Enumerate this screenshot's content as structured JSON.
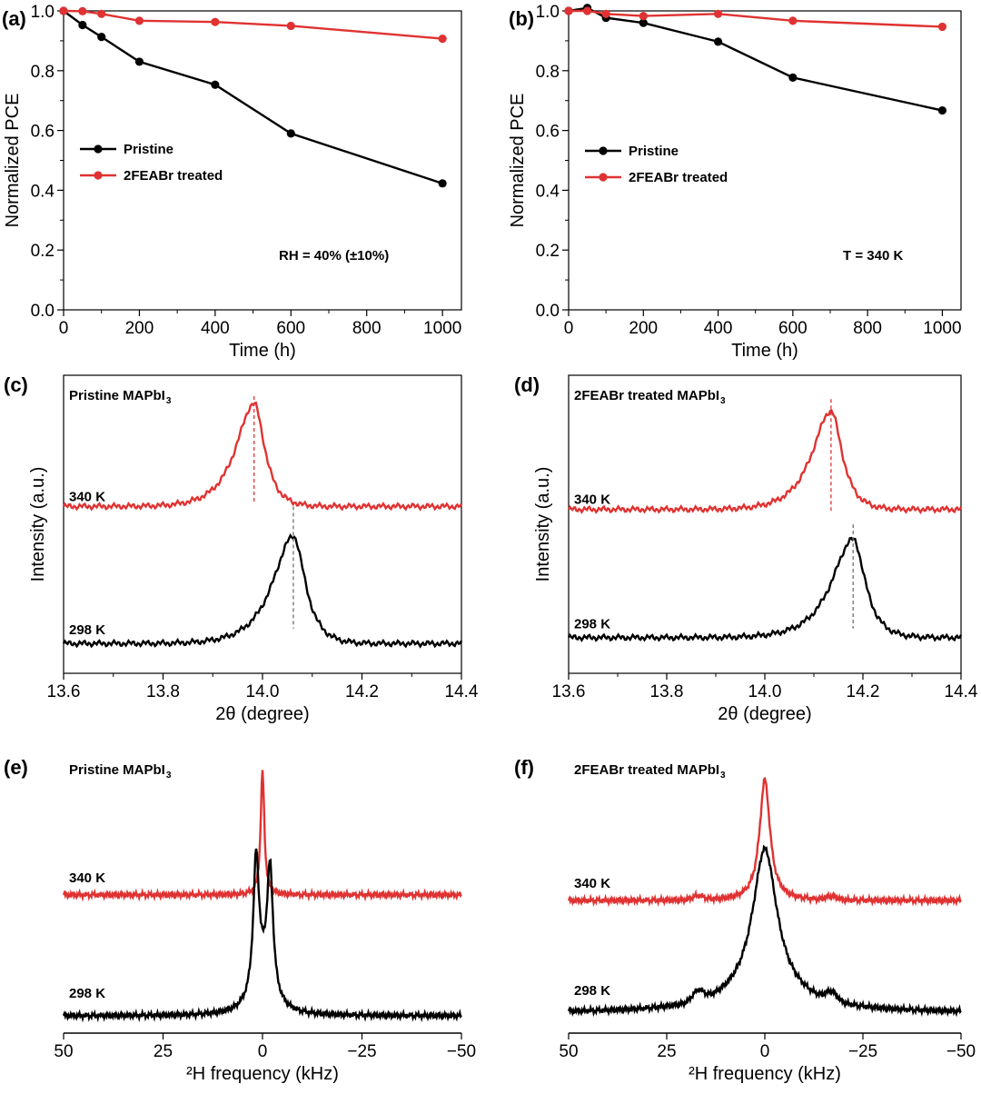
{
  "colors": {
    "black_series": "#000000",
    "red_series": "#e03232",
    "dashed_black": "#707070",
    "dashed_red": "#e03232"
  },
  "chart_data": [
    {
      "id": "a",
      "panel_label": "(a)",
      "type": "line",
      "xlabel": "Time (h)",
      "ylabel": "Normalized PCE",
      "xlim": [
        0,
        1050
      ],
      "ylim": [
        0,
        1.0
      ],
      "xticks": [
        0,
        200,
        400,
        600,
        800,
        1000
      ],
      "yticks": [
        0.0,
        0.2,
        0.4,
        0.6,
        0.8,
        1.0
      ],
      "ytick_labels": [
        "0.0",
        "0.2",
        "0.4",
        "0.6",
        "0.8",
        "1.0"
      ],
      "legend_position": "middle-left",
      "annotation": "RH = 40% (±10%)",
      "series": [
        {
          "name": "Pristine",
          "color": "#000000",
          "x": [
            0,
            50,
            100,
            200,
            400,
            600,
            1000
          ],
          "y": [
            1.0,
            0.953,
            0.913,
            0.83,
            0.753,
            0.59,
            0.423
          ]
        },
        {
          "name": "2FEABr treated",
          "color": "#e03232",
          "x": [
            0,
            50,
            100,
            200,
            400,
            600,
            1000
          ],
          "y": [
            1.0,
            0.999,
            0.99,
            0.967,
            0.963,
            0.95,
            0.907
          ]
        }
      ]
    },
    {
      "id": "b",
      "panel_label": "(b)",
      "type": "line",
      "xlabel": "Time (h)",
      "ylabel": "Normalized PCE",
      "xlim": [
        0,
        1050
      ],
      "ylim": [
        0,
        1.0
      ],
      "xticks": [
        0,
        200,
        400,
        600,
        800,
        1000
      ],
      "yticks": [
        0.0,
        0.2,
        0.4,
        0.6,
        0.8,
        1.0
      ],
      "ytick_labels": [
        "0.0",
        "0.2",
        "0.4",
        "0.6",
        "0.8",
        "1.0"
      ],
      "legend_position": "middle-left",
      "annotation": "T = 340 K",
      "series": [
        {
          "name": "Pristine",
          "color": "#000000",
          "x": [
            0,
            50,
            100,
            200,
            400,
            600,
            1000
          ],
          "y": [
            1.0,
            1.01,
            0.977,
            0.96,
            0.897,
            0.777,
            0.667
          ]
        },
        {
          "name": "2FEABr treated",
          "color": "#e03232",
          "x": [
            0,
            50,
            100,
            200,
            400,
            600,
            1000
          ],
          "y": [
            1.0,
            1.0,
            0.99,
            0.983,
            0.99,
            0.967,
            0.947
          ]
        }
      ]
    },
    {
      "id": "c",
      "panel_label": "(c)",
      "type": "line",
      "title": "Pristine MAPbI",
      "title_sub": "3",
      "xlabel": "2θ (degree)",
      "ylabel": "Intensity (a.u.)",
      "xlim": [
        13.6,
        14.4
      ],
      "ylim": [
        0,
        10
      ],
      "xticks": [
        13.6,
        13.8,
        14.0,
        14.2,
        14.4
      ],
      "xtick_labels": [
        "13.6",
        "13.8",
        "14.0",
        "14.2",
        "14.4"
      ],
      "peak_markers": [
        {
          "x": 13.983,
          "color": "#e03232",
          "y_top": 9.3,
          "y_bottom": 5.7
        },
        {
          "x": 14.062,
          "color": "#707070",
          "y_top": 5.6,
          "y_bottom": 1.5
        }
      ],
      "series": [
        {
          "name": "340 K",
          "color": "#e03232",
          "baseline": 5.6,
          "amplitude": 3.45,
          "center": 13.983,
          "width_left": 0.055,
          "width_right": 0.032
        },
        {
          "name": "298 K",
          "color": "#000000",
          "baseline": 1.0,
          "amplitude": 3.6,
          "center": 14.062,
          "width_left": 0.062,
          "width_right": 0.036
        }
      ]
    },
    {
      "id": "d",
      "panel_label": "(d)",
      "type": "line",
      "title": "2FEABr treated MAPbI",
      "title_sub": "3",
      "xlabel": "2θ (degree)",
      "ylabel": "Intensity (a.u.)",
      "xlim": [
        13.6,
        14.4
      ],
      "ylim": [
        0,
        10
      ],
      "xticks": [
        13.6,
        13.8,
        14.0,
        14.2,
        14.4
      ],
      "xtick_labels": [
        "13.6",
        "13.8",
        "14.0",
        "14.2",
        "14.4"
      ],
      "peak_markers": [
        {
          "x": 14.135,
          "color": "#e03232",
          "y_top": 9.2,
          "y_bottom": 5.4
        },
        {
          "x": 14.18,
          "color": "#707070",
          "y_top": 5.0,
          "y_bottom": 1.5
        }
      ],
      "series": [
        {
          "name": "340 K",
          "color": "#e03232",
          "baseline": 5.5,
          "amplitude": 3.3,
          "center": 14.135,
          "width_left": 0.058,
          "width_right": 0.034
        },
        {
          "name": "298 K",
          "color": "#000000",
          "baseline": 1.2,
          "amplitude": 3.3,
          "center": 14.18,
          "width_left": 0.065,
          "width_right": 0.037
        }
      ]
    },
    {
      "id": "e",
      "panel_label": "(e)",
      "type": "line",
      "title": "Pristine MAPbI",
      "title_sub": "3",
      "xlabel": "²H frequency (kHz)",
      "xlim": [
        50,
        -50
      ],
      "ylim": [
        0,
        10
      ],
      "xticks": [
        50,
        25,
        0,
        -25,
        -50
      ],
      "xtick_labels": [
        "50",
        "25",
        "0",
        "−25",
        "−50"
      ],
      "series": [
        {
          "name": "340 K",
          "color": "#e03232",
          "baseline": 4.8,
          "peaks": [
            {
              "center": 0,
              "amp": 4.3,
              "width": 0.55
            }
          ]
        },
        {
          "name": "298 K",
          "color": "#000000",
          "baseline": 0.6,
          "peaks": [
            {
              "center": 1.6,
              "amp": 4.6,
              "width": 0.85
            },
            {
              "center": -1.9,
              "amp": 4.3,
              "width": 0.9
            },
            {
              "center": 0,
              "amp": 1.2,
              "width": 3.0
            }
          ]
        }
      ]
    },
    {
      "id": "f",
      "panel_label": "(f)",
      "type": "line",
      "title": "2FEABr treated MAPbI",
      "title_sub": "3",
      "xlabel": "²H frequency (kHz)",
      "xlim": [
        50,
        -50
      ],
      "ylim": [
        0,
        10
      ],
      "xticks": [
        50,
        25,
        0,
        -25,
        -50
      ],
      "xtick_labels": [
        "50",
        "25",
        "0",
        "−25",
        "−50"
      ],
      "series": [
        {
          "name": "340 K",
          "color": "#e03232",
          "baseline": 4.6,
          "peaks": [
            {
              "center": 0,
              "amp": 4.2,
              "width": 1.6
            }
          ]
        },
        {
          "name": "298 K",
          "color": "#000000",
          "baseline": 0.7,
          "peaks": [
            {
              "center": 0,
              "amp": 5.0,
              "width": 3.7
            },
            {
              "center": 0,
              "amp": 0.7,
              "width": 12
            }
          ]
        }
      ]
    }
  ]
}
